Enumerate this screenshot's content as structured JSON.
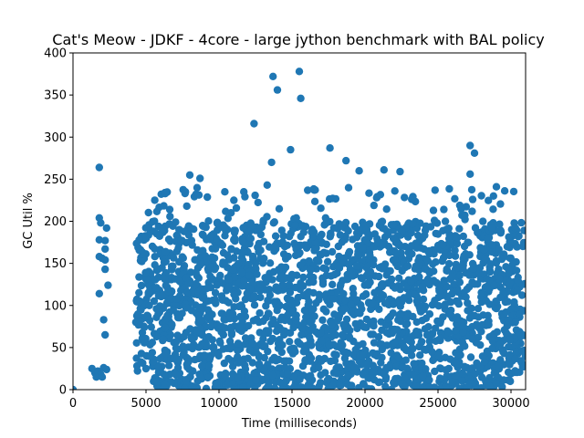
{
  "chart_data": {
    "type": "scatter",
    "title": "Cat's Meow - JDKF - 4core -  large jython benchmark with BAL policy",
    "xlabel": "Time (milliseconds)",
    "ylabel": "GC Util %",
    "xlim": [
      0,
      31000
    ],
    "ylim": [
      0,
      400
    ],
    "xticks": [
      0,
      5000,
      10000,
      15000,
      20000,
      25000,
      30000
    ],
    "xtick_labels": [
      "0",
      "5000",
      "10000",
      "15000",
      "20000",
      "25000",
      "30000"
    ],
    "yticks": [
      0,
      50,
      100,
      150,
      200,
      250,
      300,
      350,
      400
    ],
    "ytick_labels": [
      "0",
      "50",
      "100",
      "150",
      "200",
      "250",
      "300",
      "350",
      "400"
    ],
    "grid": false,
    "marker_color": "#1f77b4",
    "points_explicit": [
      [
        13700,
        372
      ],
      [
        15500,
        378
      ],
      [
        14000,
        356
      ],
      [
        15600,
        346
      ],
      [
        12400,
        316
      ],
      [
        1800,
        264
      ],
      [
        14900,
        285
      ],
      [
        17600,
        287
      ],
      [
        27200,
        290
      ],
      [
        27500,
        281
      ],
      [
        13600,
        270
      ],
      [
        18700,
        272
      ],
      [
        1800,
        204
      ],
      [
        1900,
        198
      ],
      [
        2300,
        192
      ],
      [
        1800,
        178
      ],
      [
        2200,
        177
      ],
      [
        2200,
        167
      ],
      [
        1800,
        158
      ],
      [
        2000,
        156
      ],
      [
        2200,
        154
      ],
      [
        2200,
        143
      ],
      [
        2400,
        124
      ],
      [
        1800,
        114
      ],
      [
        2100,
        83
      ],
      [
        2200,
        65
      ],
      [
        1300,
        25
      ],
      [
        1500,
        20
      ],
      [
        1700,
        22
      ],
      [
        1900,
        18
      ],
      [
        2100,
        26
      ],
      [
        2300,
        24
      ],
      [
        1600,
        15
      ],
      [
        2000,
        15
      ],
      [
        0,
        0
      ],
      [
        21300,
        261
      ],
      [
        22400,
        259
      ],
      [
        8000,
        255
      ],
      [
        27200,
        256
      ],
      [
        29000,
        241
      ],
      [
        8700,
        251
      ],
      [
        24800,
        237
      ],
      [
        6300,
        234
      ],
      [
        10400,
        235
      ],
      [
        11700,
        235
      ],
      [
        23200,
        226
      ],
      [
        25400,
        214
      ],
      [
        17300,
        204
      ],
      [
        5600,
        225
      ],
      [
        7700,
        235
      ],
      [
        13300,
        243
      ],
      [
        19600,
        260
      ],
      [
        20800,
        228
      ],
      [
        28800,
        230
      ],
      [
        30300,
        192
      ]
    ],
    "bands": [
      {
        "x_range": [
          4300,
          31000
        ],
        "y_range": [
          150,
          200
        ],
        "count": 520
      },
      {
        "x_range": [
          4300,
          31000
        ],
        "y_range": [
          20,
          150
        ],
        "count": 1500
      },
      {
        "x_range": [
          5500,
          30000
        ],
        "y_range": [
          0,
          20
        ],
        "count": 300
      },
      {
        "x_range": [
          5000,
          30500
        ],
        "y_range": [
          200,
          240
        ],
        "count": 70
      }
    ]
  }
}
